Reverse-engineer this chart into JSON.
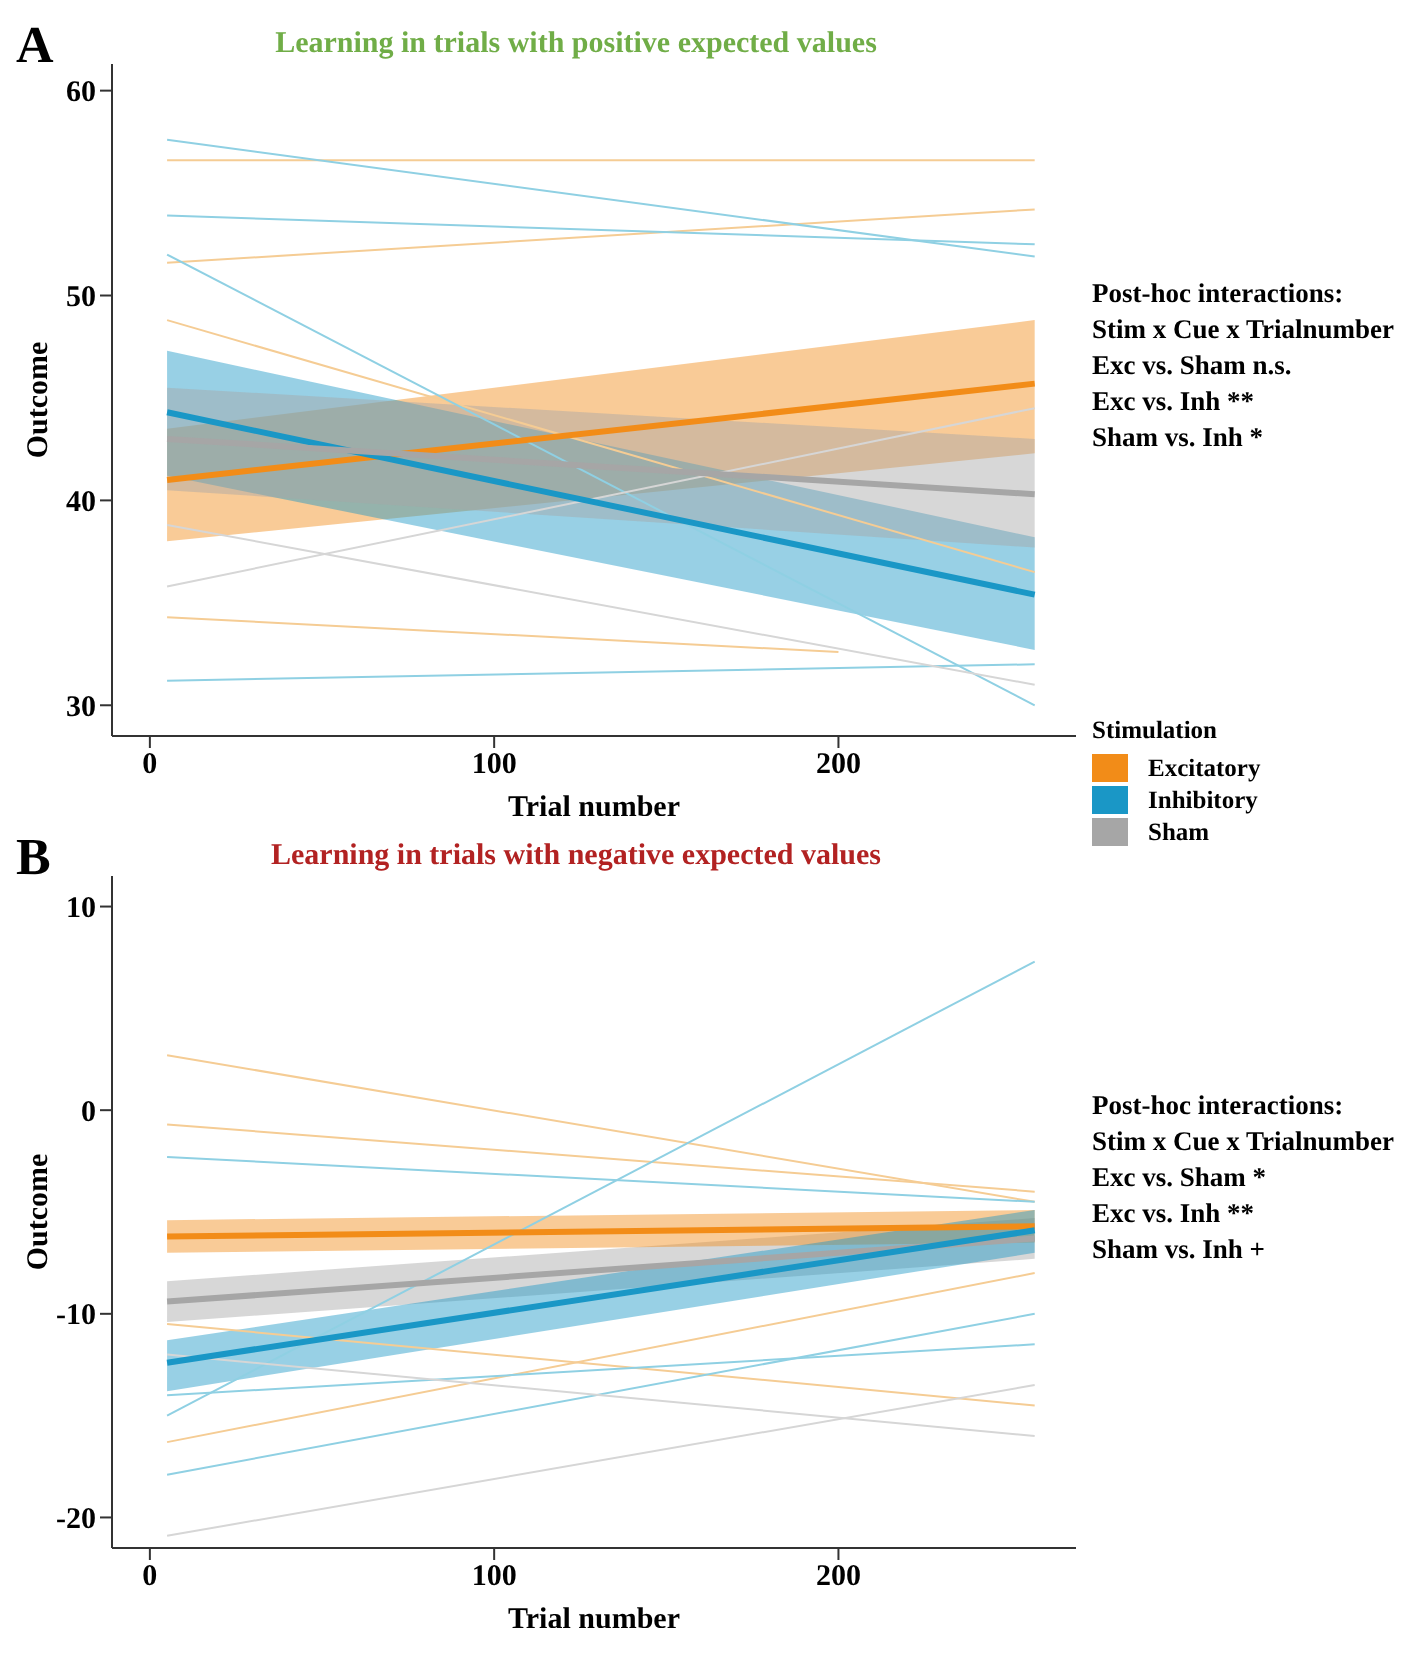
{
  "chart_data": [
    {
      "type": "line",
      "title": "Learning in trials with positive expected values",
      "xlabel": "Trial number",
      "ylabel": "Outcome",
      "legend_title": "Stimulation",
      "legend": "bottom right",
      "marker": "none",
      "line_style": "solid",
      "xlim": [
        -11,
        269
      ],
      "ylim": [
        28.5,
        61.3
      ],
      "xticks": [
        0,
        100,
        200
      ],
      "yticks": [
        30,
        40,
        50,
        60
      ],
      "annotations": [
        "A",
        "Post-hoc interactions:",
        "Stim x Cue x Trialnumber",
        "Exc vs. Sham n.s.",
        "Exc vs. Inh **",
        "Sham vs. Inh *"
      ],
      "series": [
        {
          "color": "#f5cc94",
          "x": [
            5,
            257
          ],
          "values": [
            56.6,
            56.6
          ]
        },
        {
          "color": "#f5cc94",
          "x": [
            5,
            257
          ],
          "values": [
            51.6,
            54.2
          ]
        },
        {
          "color": "#f5cc94",
          "x": [
            5,
            200
          ],
          "values": [
            34.3,
            32.6
          ]
        },
        {
          "color": "#f5cc94",
          "x": [
            5,
            257
          ],
          "values": [
            48.8,
            36.5
          ]
        },
        {
          "color": "#8fd0e3",
          "x": [
            5,
            257
          ],
          "values": [
            57.6,
            51.9
          ]
        },
        {
          "color": "#8fd0e3",
          "x": [
            5,
            257
          ],
          "values": [
            53.9,
            52.5
          ]
        },
        {
          "color": "#8fd0e3",
          "x": [
            5,
            257
          ],
          "values": [
            31.2,
            32.0
          ]
        },
        {
          "color": "#8fd0e3",
          "x": [
            5,
            257
          ],
          "values": [
            52.0,
            30.0
          ]
        },
        {
          "color": "#d6d6d6",
          "x": [
            5,
            257
          ],
          "values": [
            38.8,
            31.0
          ]
        },
        {
          "color": "#d6d6d6",
          "x": [
            5,
            257
          ],
          "values": [
            35.8,
            44.5
          ]
        },
        {
          "name": "Excitatory",
          "color": "#f28c18",
          "x": [
            5,
            257
          ],
          "values": [
            41.0,
            45.7
          ],
          "lower": [
            38.0,
            42.3
          ],
          "upper": [
            43.5,
            48.8
          ]
        },
        {
          "name": "Inhibitory",
          "color": "#1a97c6",
          "x": [
            5,
            257
          ],
          "values": [
            44.3,
            35.4
          ],
          "lower": [
            41.2,
            32.7
          ],
          "upper": [
            47.3,
            38.2
          ]
        },
        {
          "name": "Sham",
          "color": "#a6a6a6",
          "x": [
            5,
            257
          ],
          "values": [
            43.0,
            40.3
          ],
          "lower": [
            40.5,
            37.7
          ],
          "upper": [
            45.5,
            43.0
          ]
        }
      ]
    },
    {
      "type": "line",
      "title": "Learning in trials with negative expected values",
      "xlabel": "Trial number",
      "ylabel": "Outcome",
      "legend": false,
      "marker": "none",
      "line_style": "solid",
      "xlim": [
        -11,
        269
      ],
      "ylim": [
        -21.5,
        11.5
      ],
      "xticks": [
        0,
        100,
        200
      ],
      "yticks": [
        -20,
        -10,
        0,
        10
      ],
      "annotations": [
        "B",
        "Post-hoc interactions:",
        "Stim x Cue x Trialnumber",
        "Exc vs. Sham *",
        "Exc vs.  Inh **",
        "Sham vs. Inh +"
      ],
      "series": [
        {
          "color": "#f5cc94",
          "x": [
            5,
            257
          ],
          "values": [
            2.7,
            -4.5
          ]
        },
        {
          "color": "#f5cc94",
          "x": [
            5,
            257
          ],
          "values": [
            -16.3,
            -8.0
          ]
        },
        {
          "color": "#f5cc94",
          "x": [
            5,
            257
          ],
          "values": [
            -0.7,
            -4.0
          ]
        },
        {
          "color": "#f5cc94",
          "x": [
            5,
            257
          ],
          "values": [
            -10.5,
            -14.5
          ]
        },
        {
          "color": "#8fd0e3",
          "x": [
            5,
            257
          ],
          "values": [
            -15.0,
            7.3
          ]
        },
        {
          "color": "#8fd0e3",
          "x": [
            5,
            257
          ],
          "values": [
            -2.3,
            -4.5
          ]
        },
        {
          "color": "#8fd0e3",
          "x": [
            5,
            257
          ],
          "values": [
            -17.9,
            -10.0
          ]
        },
        {
          "color": "#8fd0e3",
          "x": [
            5,
            257
          ],
          "values": [
            -14.0,
            -11.5
          ]
        },
        {
          "color": "#d6d6d6",
          "x": [
            5,
            257
          ],
          "values": [
            -20.9,
            -13.5
          ]
        },
        {
          "color": "#d6d6d6",
          "x": [
            5,
            257
          ],
          "values": [
            -12.0,
            -16.0
          ]
        },
        {
          "color": "#a6a6a6",
          "x": [
            5,
            257
          ],
          "values": [
            -9.4,
            -6.3
          ],
          "lower": [
            -10.4,
            -7.3
          ],
          "upper": [
            -8.4,
            -5.3
          ]
        },
        {
          "color": "#f28c18",
          "x": [
            5,
            257
          ],
          "values": [
            -6.2,
            -5.7
          ],
          "lower": [
            -7.0,
            -6.5
          ],
          "upper": [
            -5.4,
            -4.9
          ]
        },
        {
          "color": "#1a97c6",
          "x": [
            5,
            257
          ],
          "values": [
            -12.4,
            -5.9
          ],
          "lower": [
            -13.8,
            -7.0
          ],
          "upper": [
            -11.3,
            -4.9
          ]
        }
      ]
    }
  ]
}
